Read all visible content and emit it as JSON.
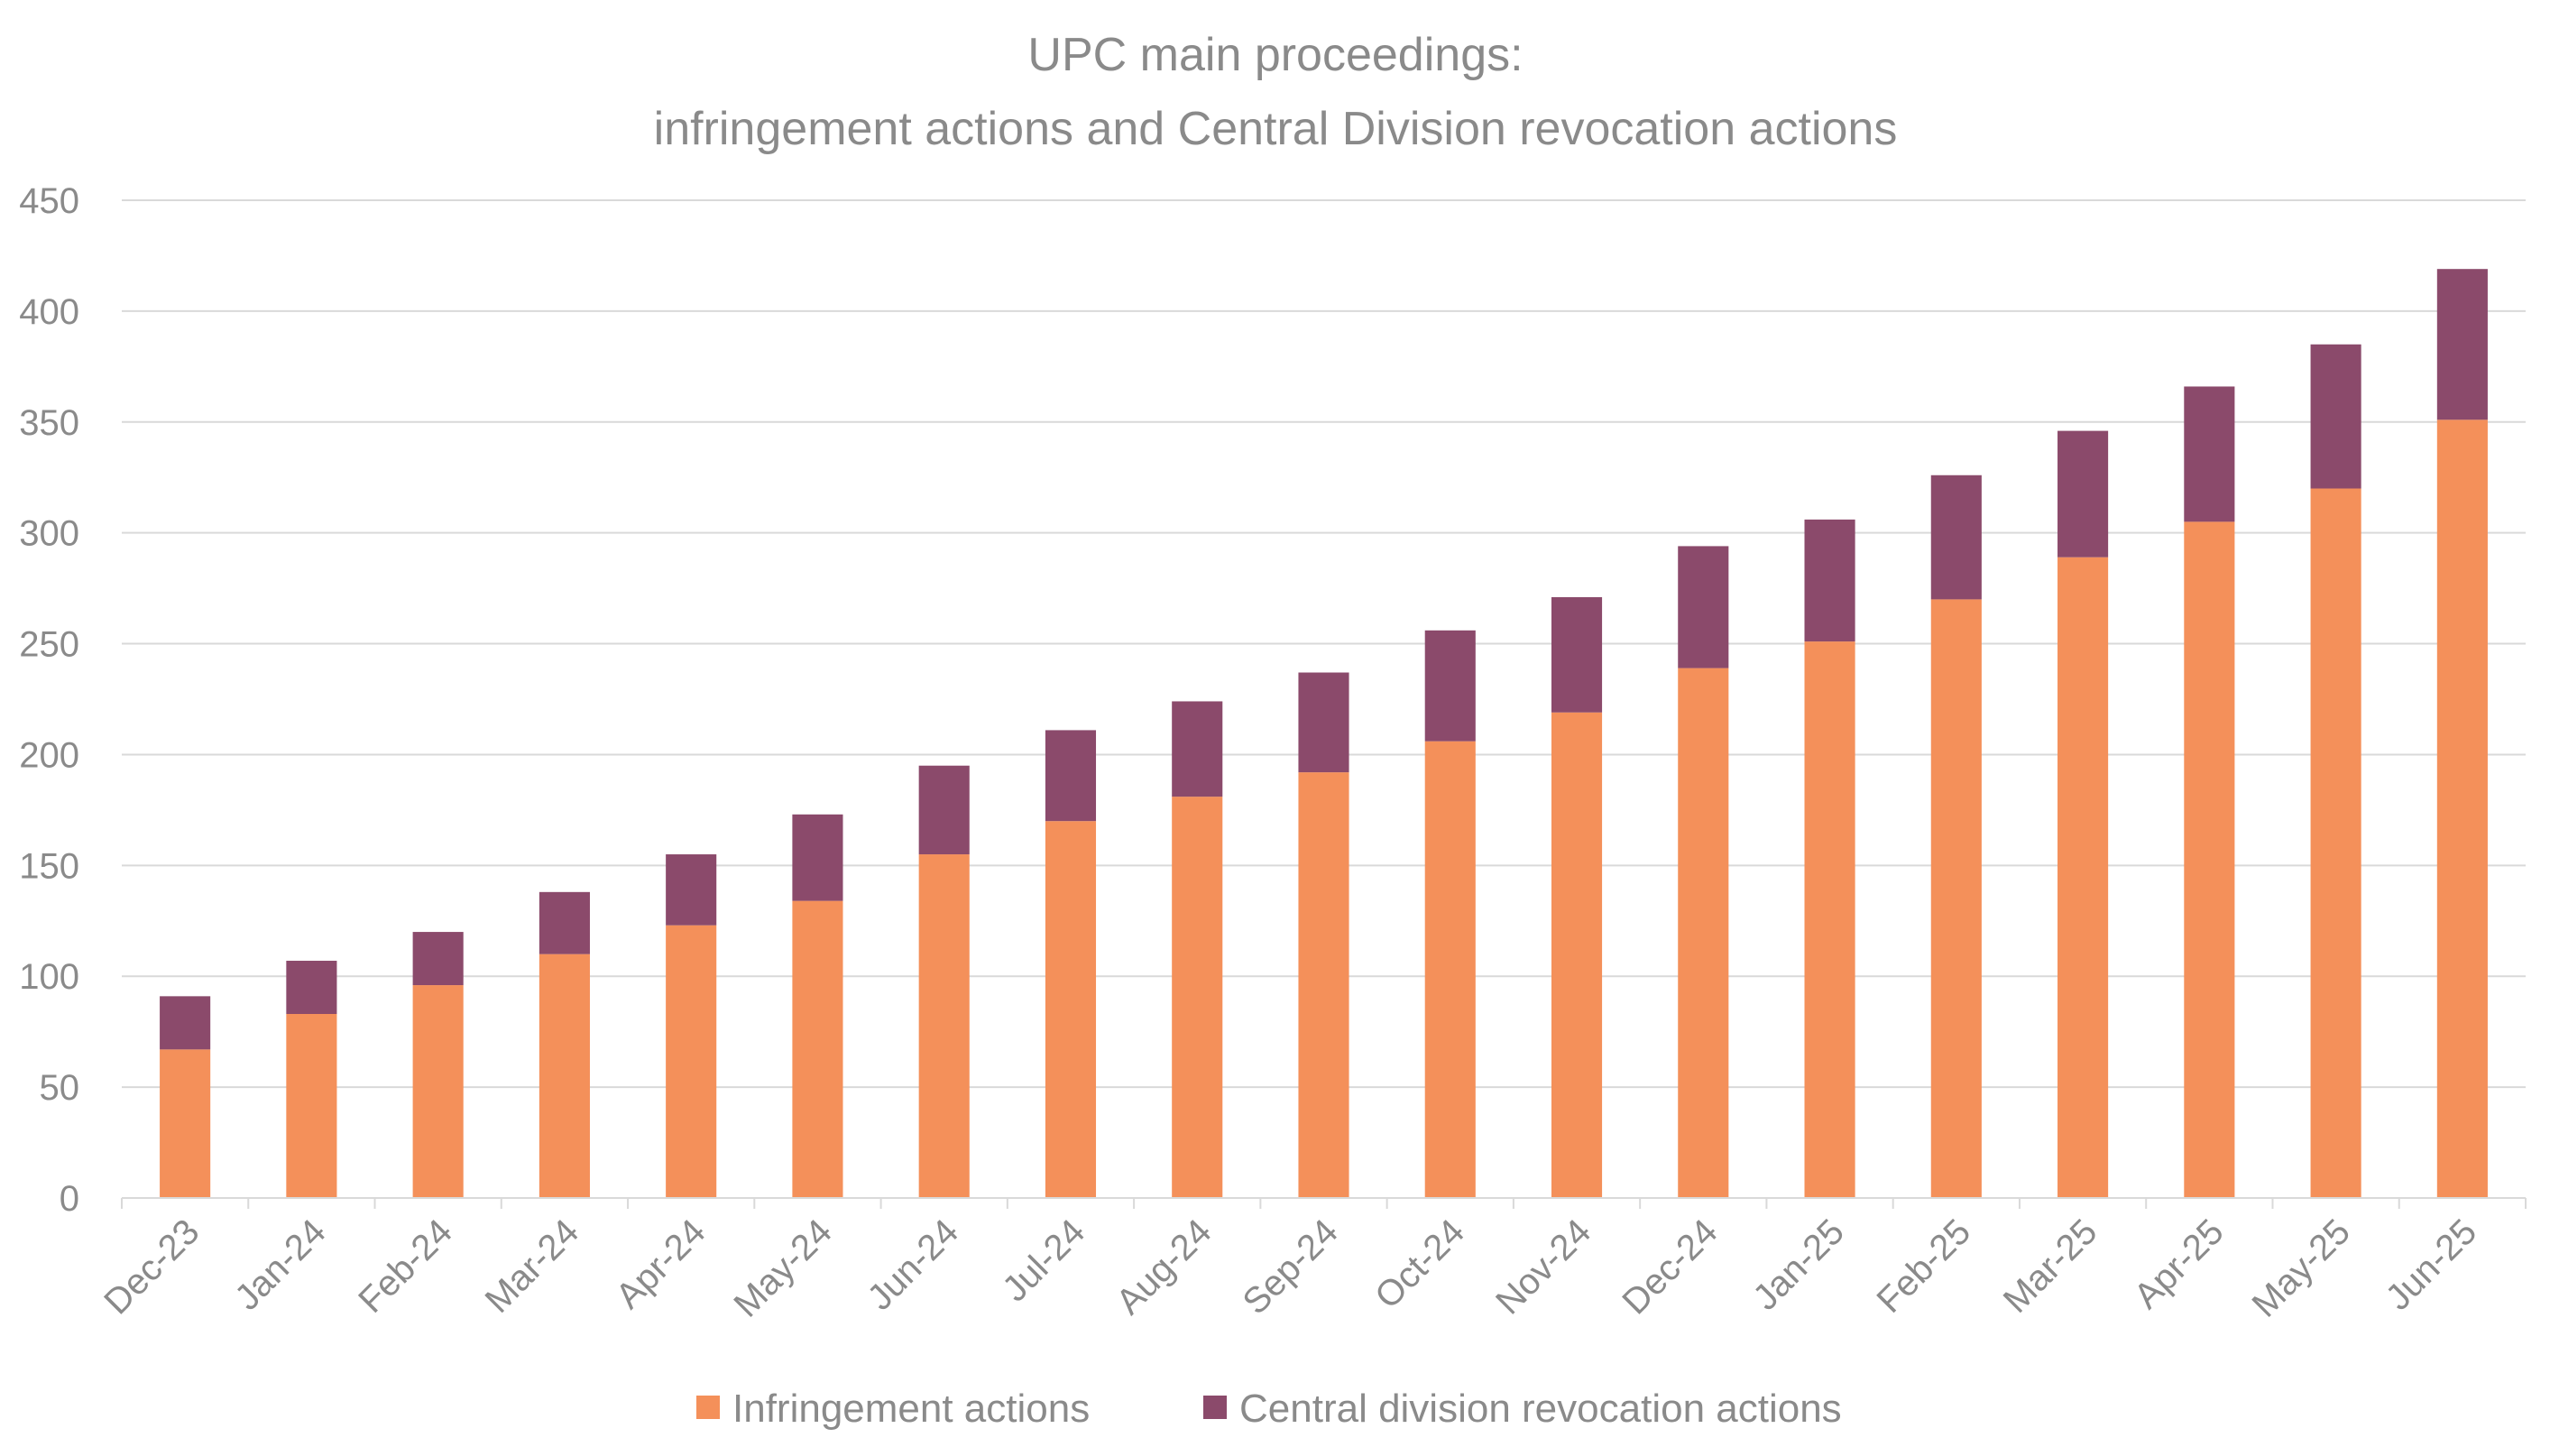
{
  "chart_data": {
    "type": "bar",
    "stacked": true,
    "title": [
      "UPC main proceedings:",
      "infringement actions and Central Division revocation actions"
    ],
    "categories": [
      "Dec-23",
      "Jan-24",
      "Feb-24",
      "Mar-24",
      "Apr-24",
      "May-24",
      "Jun-24",
      "Jul-24",
      "Aug-24",
      "Sep-24",
      "Oct-24",
      "Nov-24",
      "Dec-24",
      "Jan-25",
      "Feb-25",
      "Mar-25",
      "Apr-25",
      "May-25",
      "Jun-25"
    ],
    "series": [
      {
        "name": "Infringement actions",
        "color": "#F4905A",
        "values": [
          67,
          83,
          96,
          110,
          123,
          134,
          155,
          170,
          181,
          192,
          206,
          219,
          239,
          251,
          270,
          289,
          305,
          320,
          351
        ]
      },
      {
        "name": "Central division revocation actions",
        "color": "#8B4A6B",
        "values": [
          24,
          24,
          24,
          28,
          32,
          39,
          40,
          41,
          43,
          45,
          50,
          52,
          55,
          55,
          56,
          57,
          61,
          65,
          68
        ]
      }
    ],
    "ylim": [
      0,
      450
    ],
    "yticks": [
      0,
      50,
      100,
      150,
      200,
      250,
      300,
      350,
      400,
      450
    ],
    "xlabel": "",
    "ylabel": "",
    "grid": true,
    "legend_position": "bottom"
  }
}
